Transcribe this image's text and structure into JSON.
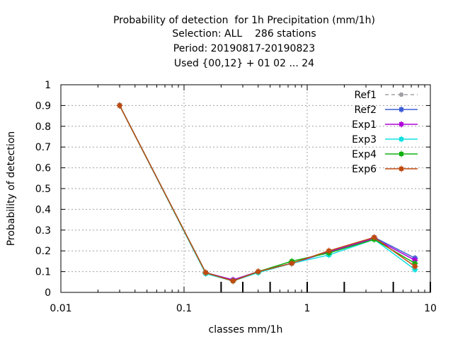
{
  "chart_data": {
    "type": "line",
    "title": [
      "Probability of detection  for 1h Precipitation (mm/1h)",
      "Selection: ALL    286 stations",
      "Period: 20190817-20190823",
      "Used {00,12} + 01 02 ... 24"
    ],
    "xlabel": "classes mm/1h",
    "ylabel": "Probability of detection",
    "xscale": "log",
    "xlim": [
      0.01,
      10
    ],
    "ylim": [
      0,
      1
    ],
    "x_ticks": [
      0.01,
      0.1,
      1,
      10
    ],
    "x_tick_labels": [
      "0.01",
      "0.1",
      "1",
      "10"
    ],
    "y_ticks": [
      0,
      0.1,
      0.2,
      0.3,
      0.4,
      0.5,
      0.6,
      0.7,
      0.8,
      0.9,
      1
    ],
    "y_tick_labels": [
      "0",
      "0.1",
      "0.2",
      "0.3",
      "0.4",
      "0.5",
      "0.6",
      "0.7",
      "0.8",
      "0.9",
      "1"
    ],
    "grid": true,
    "legend_position": "top-right",
    "class_markers": [
      0.2,
      0.3,
      0.5,
      1,
      2,
      5,
      10
    ],
    "x": [
      0.03,
      0.15,
      0.25,
      0.4,
      0.75,
      1.5,
      3.5,
      7.5
    ],
    "series": [
      {
        "name": "Ref1",
        "color": "#a0a0a4",
        "dashed": true,
        "values": [
          0.9,
          0.095,
          0.06,
          0.1,
          0.14,
          0.195,
          0.265,
          0.165
        ]
      },
      {
        "name": "Ref2",
        "color": "#3c5fd6",
        "dashed": false,
        "values": [
          0.9,
          0.095,
          0.06,
          0.1,
          0.14,
          0.195,
          0.265,
          0.165
        ]
      },
      {
        "name": "Exp1",
        "color": "#b000d8",
        "dashed": false,
        "values": [
          0.9,
          0.095,
          0.06,
          0.1,
          0.14,
          0.195,
          0.26,
          0.155
        ]
      },
      {
        "name": "Exp3",
        "color": "#10e0e0",
        "dashed": false,
        "values": [
          0.9,
          0.09,
          0.055,
          0.095,
          0.14,
          0.18,
          0.255,
          0.11
        ]
      },
      {
        "name": "Exp4",
        "color": "#10b010",
        "dashed": false,
        "values": [
          0.9,
          0.095,
          0.055,
          0.1,
          0.15,
          0.19,
          0.255,
          0.14
        ]
      },
      {
        "name": "Exp6",
        "color": "#c04a10",
        "dashed": false,
        "values": [
          0.9,
          0.095,
          0.055,
          0.1,
          0.14,
          0.2,
          0.265,
          0.125
        ]
      }
    ]
  }
}
